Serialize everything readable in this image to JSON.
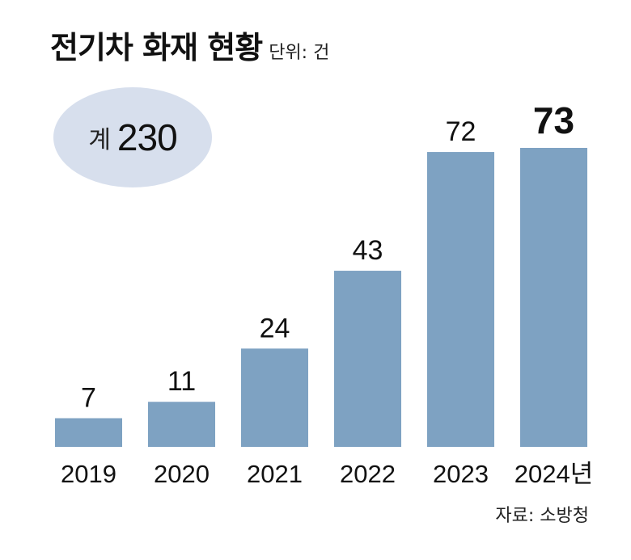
{
  "header": {
    "title": "전기차 화재 현황",
    "unit": "단위: 건"
  },
  "summary": {
    "total_prefix": "계",
    "total_value": "230"
  },
  "source": "자료: 소방청",
  "colors": {
    "bar": "#7ea2c2",
    "badge": "#d7dfed",
    "text": "#111111"
  },
  "chart_data": {
    "type": "bar",
    "title": "전기차 화재 현황",
    "subtitle": "단위: 건",
    "categories": [
      "2019",
      "2020",
      "2021",
      "2022",
      "2023",
      "2024년"
    ],
    "values": [
      7,
      11,
      24,
      43,
      72,
      73
    ],
    "data_labels": [
      "7",
      "11",
      "24",
      "43",
      "72",
      "73"
    ],
    "highlight_index": 5,
    "xlabel": "",
    "ylabel": "",
    "ylim": [
      0,
      73
    ],
    "grid": false,
    "legend": "none"
  }
}
